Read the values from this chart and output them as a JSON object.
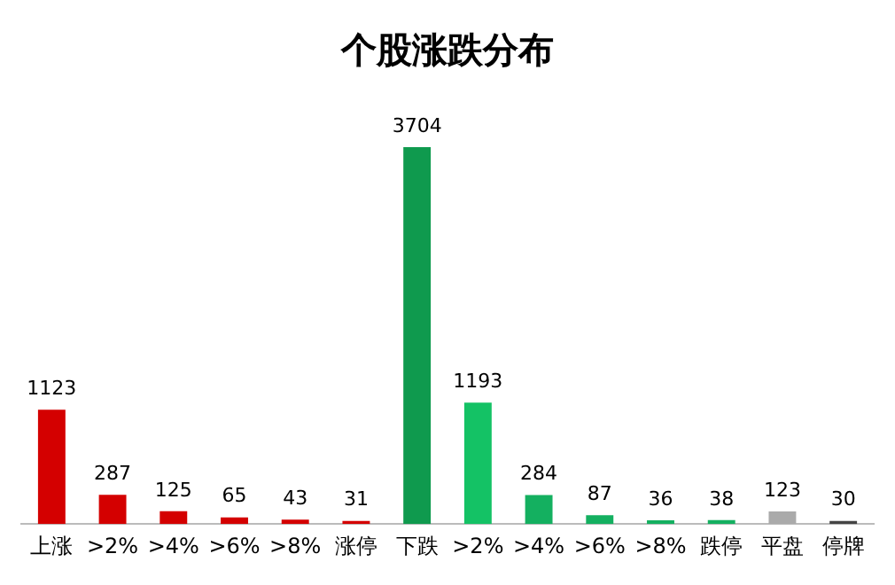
{
  "chart_data": {
    "type": "bar",
    "title": "个股涨跌分布",
    "categories": [
      "上涨",
      ">2%",
      ">4%",
      ">6%",
      ">8%",
      "涨停",
      "下跌",
      ">2%",
      ">4%",
      ">6%",
      ">8%",
      "跌停",
      "平盘",
      "停牌"
    ],
    "values": [
      1123,
      287,
      125,
      65,
      43,
      31,
      3704,
      1193,
      284,
      87,
      36,
      38,
      123,
      30
    ],
    "colors": [
      "#d40000",
      "#d40000",
      "#d40000",
      "#d40000",
      "#d40000",
      "#d40000",
      "#0f9a4e",
      "#14c265",
      "#14b060",
      "#14b060",
      "#14b060",
      "#14b060",
      "#aaaaaa",
      "#444444"
    ],
    "data_labels": true,
    "grid": false,
    "legend": false
  }
}
